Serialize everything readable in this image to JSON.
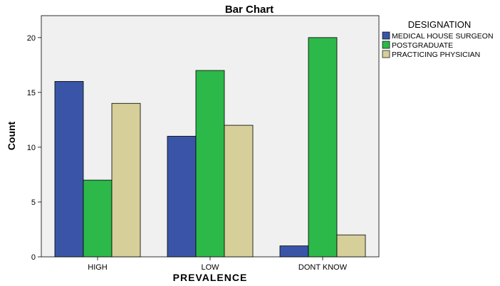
{
  "chart_data": {
    "type": "bar",
    "title": "Bar Chart",
    "xlabel": "PREVALENCE",
    "ylabel": "Count",
    "categories": [
      "HIGH",
      "LOW",
      "DONT KNOW"
    ],
    "legend_title": "DESIGNATION",
    "series": [
      {
        "name": "MEDICAL HOUSE SURGEON",
        "values": [
          16,
          11,
          1
        ],
        "color": "#3a55a8"
      },
      {
        "name": "POSTGRADUATE",
        "values": [
          7,
          17,
          20
        ],
        "color": "#2db84a"
      },
      {
        "name": "PRACTICING PHYSICIAN",
        "values": [
          14,
          12,
          2
        ],
        "color": "#d6cf9a"
      }
    ],
    "ylim": [
      0,
      22
    ],
    "yticks": [
      0,
      5,
      10,
      15,
      20
    ],
    "grid": false,
    "legend_position": "top-right",
    "plot_background": "#f0f0f0"
  }
}
